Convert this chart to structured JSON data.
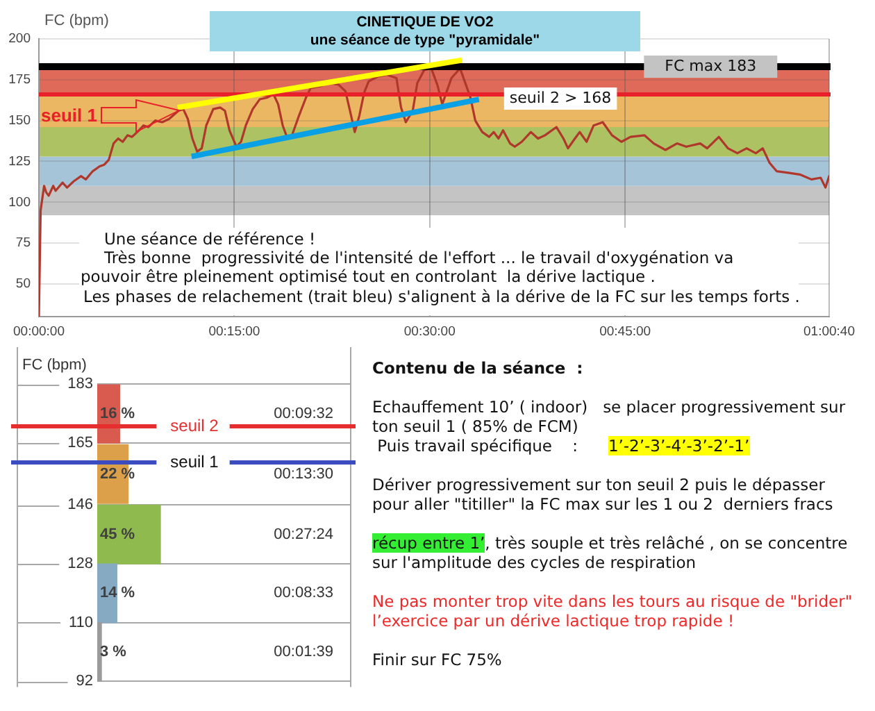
{
  "chart_data": [
    {
      "type": "line",
      "title": "CINETIQUE DE VO2",
      "subtitle": "une séance de type \"pyramidale\"",
      "ylabel": "FC (bpm)",
      "xlim": [
        0,
        3640
      ],
      "xticks": [
        {
          "value": 0,
          "label": "00:00:00"
        },
        {
          "value": 900,
          "label": "00:15:00"
        },
        {
          "value": 1800,
          "label": "00:30:00"
        },
        {
          "value": 2700,
          "label": "00:45:00"
        },
        {
          "value": 3640,
          "label": "01:00:40"
        }
      ],
      "ylim": [
        30,
        200
      ],
      "yticks": [
        50,
        75,
        100,
        125,
        150,
        175,
        200
      ],
      "grid": true,
      "marker": "none",
      "series": [
        {
          "color": "#b0372c",
          "x": [
            0,
            8,
            24,
            34,
            45,
            66,
            77,
            109,
            130,
            162,
            194,
            216,
            248,
            280,
            301,
            322,
            344,
            365,
            386,
            408,
            429,
            461,
            482,
            504,
            536,
            568,
            600,
            643,
            665,
            686,
            707,
            729,
            750,
            771,
            803,
            835,
            857,
            878,
            910,
            931,
            953,
            985,
            1017,
            1049,
            1081,
            1102,
            1123,
            1145,
            1166,
            1198,
            1230,
            1252,
            1294,
            1337,
            1380,
            1412,
            1433,
            1455,
            1476,
            1498,
            1519,
            1562,
            1604,
            1647,
            1668,
            1690,
            1722,
            1743,
            1775,
            1807,
            1835,
            1858,
            1900,
            1940,
            1988,
            2010,
            2042,
            2074,
            2095,
            2117,
            2138,
            2170,
            2192,
            2224,
            2266,
            2299,
            2331,
            2384,
            2416,
            2437,
            2469,
            2491,
            2523,
            2555,
            2597,
            2640,
            2683,
            2725,
            2789,
            2832,
            2886,
            2939,
            2982,
            3046,
            3078,
            3132,
            3174,
            3217,
            3260,
            3302,
            3334,
            3366,
            3398,
            3452,
            3505,
            3558,
            3601,
            3623,
            3640
          ],
          "values": [
            30,
            95,
            110,
            106,
            104,
            110,
            107,
            112,
            109,
            113,
            116,
            114,
            119,
            122,
            123,
            126,
            136,
            139,
            137,
            141,
            140,
            144,
            147,
            146,
            150,
            149,
            151,
            156,
            157,
            151,
            139,
            131,
            133,
            147,
            157,
            158,
            156,
            144,
            134,
            137,
            147,
            157,
            163,
            164,
            166,
            160,
            147,
            139,
            141,
            153,
            164,
            170,
            171,
            173,
            172,
            168,
            156,
            143,
            153,
            167,
            174,
            177,
            178,
            176,
            158,
            149,
            156,
            173,
            181,
            182,
            172,
            160,
            176,
            182,
            164,
            150,
            143,
            140,
            143,
            139,
            144,
            136,
            134,
            137,
            143,
            139,
            141,
            146,
            139,
            133,
            139,
            143,
            137,
            147,
            149,
            141,
            137,
            140,
            141,
            136,
            132,
            136,
            134,
            136,
            133,
            140,
            133,
            130,
            133,
            130,
            133,
            124,
            119,
            118,
            117,
            114,
            115,
            109,
            116
          ]
        },
        {
          "type": "line",
          "color": "#ffff00",
          "x": [
            639,
            1948
          ],
          "values": [
            158,
            187
          ]
        },
        {
          "type": "line",
          "color": "#0aa0e6",
          "x": [
            703,
            2027
          ],
          "values": [
            128,
            163
          ]
        }
      ],
      "bands": [
        {
          "axis": "y",
          "from": 92,
          "to": 110,
          "color": "#c4c4c4"
        },
        {
          "axis": "y",
          "from": 110,
          "to": 128,
          "color": "#a6c4d7"
        },
        {
          "axis": "y",
          "from": 128,
          "to": 146,
          "color": "#adc262"
        },
        {
          "axis": "y",
          "from": 146,
          "to": 165,
          "color": "#ecb762"
        },
        {
          "axis": "y",
          "from": 165,
          "to": 183,
          "color": "#e06a5a"
        }
      ],
      "ref_lines": [
        {
          "axis": "y",
          "value": 183,
          "label": "FC max 183",
          "color": "#000000"
        },
        {
          "axis": "y",
          "value": 166,
          "label": "seuil 2 > 168",
          "color": "#e8202a"
        }
      ],
      "annotations": [
        "seuil 1",
        "Une séance de référence !",
        "Très bonne  progressivité de l'intensité de l'effort ... le travail d'oxygénation va",
        "pouvoir être pleinement optimisé tout en controlant  la dérive lactique .",
        "Les phases de relachement (trait bleu) s'alignent à la dérive de la FC sur les temps forts ."
      ]
    },
    {
      "type": "bar",
      "orientation": "horizontal",
      "ylabel": "FC (bpm)",
      "x": [
        174,
        155.5,
        137,
        119,
        101
      ],
      "values": [
        16,
        22,
        45,
        14,
        3
      ],
      "colors": [
        "#d95a4e",
        "#dca04a",
        "#8fba4e",
        "#85aac2",
        "#9b9b9b"
      ],
      "value_labels": [
        "16 %",
        "22 %",
        "45 %",
        "14 %",
        "3 %"
      ],
      "ylim": [
        92,
        183
      ],
      "yticks": [
        92,
        110,
        128,
        146,
        165,
        183
      ],
      "tick_labels": "y",
      "grid": "y",
      "ref_lines": [
        {
          "axis": "y",
          "value": 170,
          "label": "seuil 2",
          "color": "#e62e2e"
        },
        {
          "axis": "y",
          "value": 159,
          "label": "seuil 1",
          "color": "#3b4cc0"
        }
      ],
      "annotations": [
        "00:09:32",
        "00:13:30",
        "00:27:24",
        "00:08:33",
        "00:01:39"
      ]
    },
    {
      "type": "other",
      "title": "Contenu de la séance  :",
      "annotations": [
        "Echauffement 10’ ( indoor)   se placer progressivement sur\nton seuil 1 ( 85% de FCM)",
        " Puis travail spécifique    :      ",
        "1’-2’-3’-4’-3’-2’-1’",
        "Dériver progressivement sur ton seuil 2 puis le dépasser\npour aller \"titiller\" la FC max sur les 1 ou 2  derniers fracs",
        "récup entre 1’",
        ", très souple et très relâché , on se concentre",
        "sur l'amplitude des cycles de respiration",
        "Ne pas monter trop vite dans les tours au risque de \"brider\"\nl’exercice par un dérive lactique trop rapide !",
        "Finir sur FC 75%"
      ]
    }
  ]
}
